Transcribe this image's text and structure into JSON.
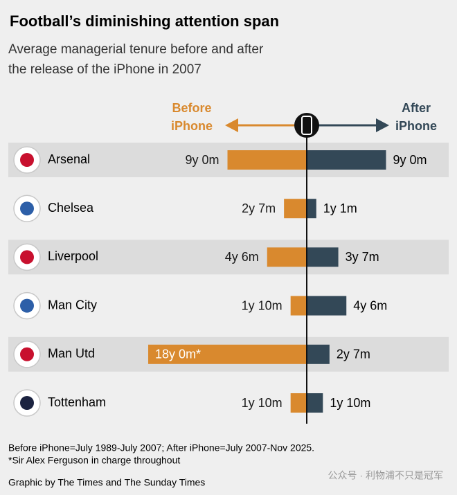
{
  "chart_data": {
    "type": "diverging-bar",
    "title": "Football’s diminishing attention span",
    "subtitle": [
      "Average managerial tenure before and after",
      "the release of the iPhone in 2007"
    ],
    "categories": [
      "Arsenal",
      "Chelsea",
      "Liverpool",
      "Man City",
      "Man Utd",
      "Tottenham"
    ],
    "series": [
      {
        "name": "Before iPhone",
        "color": "#d9892e",
        "values": [
          108,
          31,
          54,
          22,
          216,
          22
        ],
        "value_labels": [
          "9y 0m",
          "2y 7m",
          "4y 6m",
          "1y 10m",
          "18y 0m*",
          "1y 10m"
        ]
      },
      {
        "name": "After iPhone",
        "color": "#334857",
        "values": [
          108,
          13,
          43,
          54,
          31,
          22
        ],
        "value_labels": [
          "9y 0m",
          "1y 1m",
          "3y 7m",
          "4y 6m",
          "2y 7m",
          "1y 10m"
        ]
      }
    ],
    "notes": [
      "Before iPhone=July 1989-July 2007; After iPhone=July 2007-Nov 2025.",
      "*Sir Alex Ferguson in charge throughout"
    ],
    "source": "Graphic by The Times and The Sunday Times",
    "watermark": "公众号 · 利物浦不只是冠军"
  }
}
